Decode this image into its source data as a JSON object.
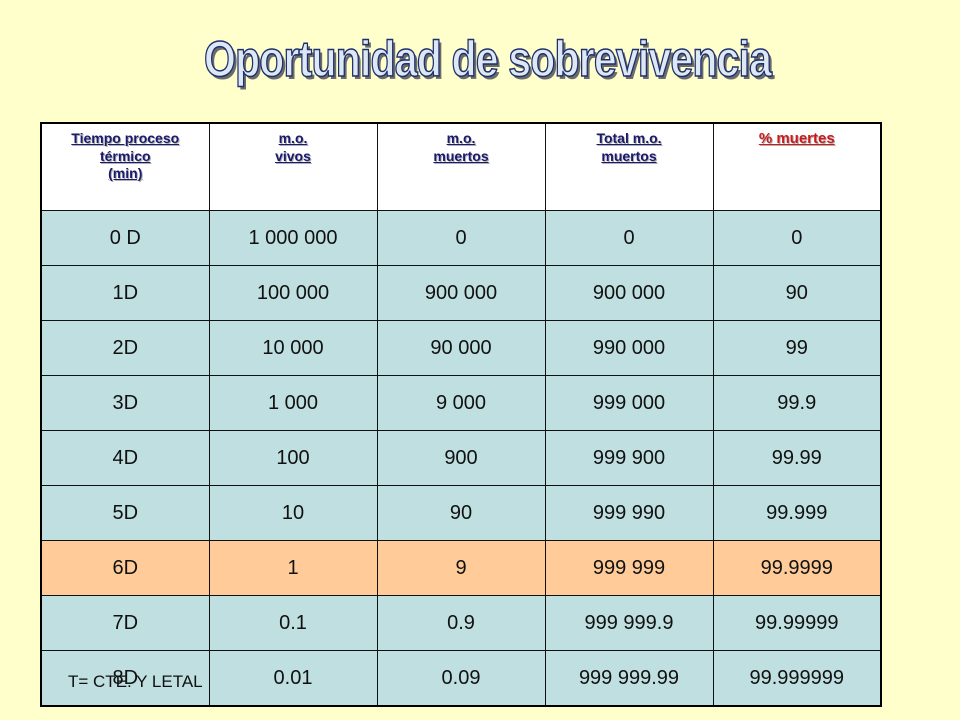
{
  "title": "Oportunidad  de sobrevivencia",
  "table": {
    "headers": [
      {
        "lines": [
          "Tiempo proceso",
          "térmico",
          "(min)"
        ]
      },
      {
        "lines": [
          "m.o.",
          "vivos"
        ]
      },
      {
        "lines": [
          "m.o.",
          "muertos"
        ]
      },
      {
        "lines": [
          "Total m.o.",
          "muertos"
        ]
      },
      {
        "lines": [
          "% muertes"
        ]
      }
    ],
    "rows": [
      {
        "cells": [
          "0 D",
          "1 000 000",
          "0",
          "0",
          "0"
        ],
        "highlight": false
      },
      {
        "cells": [
          "1D",
          "100 000",
          "900 000",
          "900 000",
          "90"
        ],
        "highlight": false
      },
      {
        "cells": [
          "2D",
          "10 000",
          "90 000",
          "990 000",
          "99"
        ],
        "highlight": false
      },
      {
        "cells": [
          "3D",
          "1 000",
          "9 000",
          "999 000",
          "99.9"
        ],
        "highlight": false
      },
      {
        "cells": [
          "4D",
          "100",
          "900",
          "999 900",
          "99.99"
        ],
        "highlight": false
      },
      {
        "cells": [
          "5D",
          "10",
          "90",
          "999 990",
          "99.999"
        ],
        "highlight": false
      },
      {
        "cells": [
          "6D",
          "1",
          "9",
          "999 999",
          "99.9999"
        ],
        "highlight": true
      },
      {
        "cells": [
          "7D",
          "0.1",
          "0.9",
          "999 999.9",
          "99.99999"
        ],
        "highlight": false
      },
      {
        "cells": [
          "8D",
          "0.01",
          "0.09",
          "999 999.99",
          "99.999999"
        ],
        "highlight": false
      }
    ]
  },
  "footnote": "T= CTE. Y LETAL",
  "colors": {
    "background": "#ffffcc",
    "row_fill": "#bfdfe0",
    "highlight_fill": "#ffcc99",
    "header_text": "#1a1a6e",
    "pct_header_text": "#cc1a1a"
  }
}
